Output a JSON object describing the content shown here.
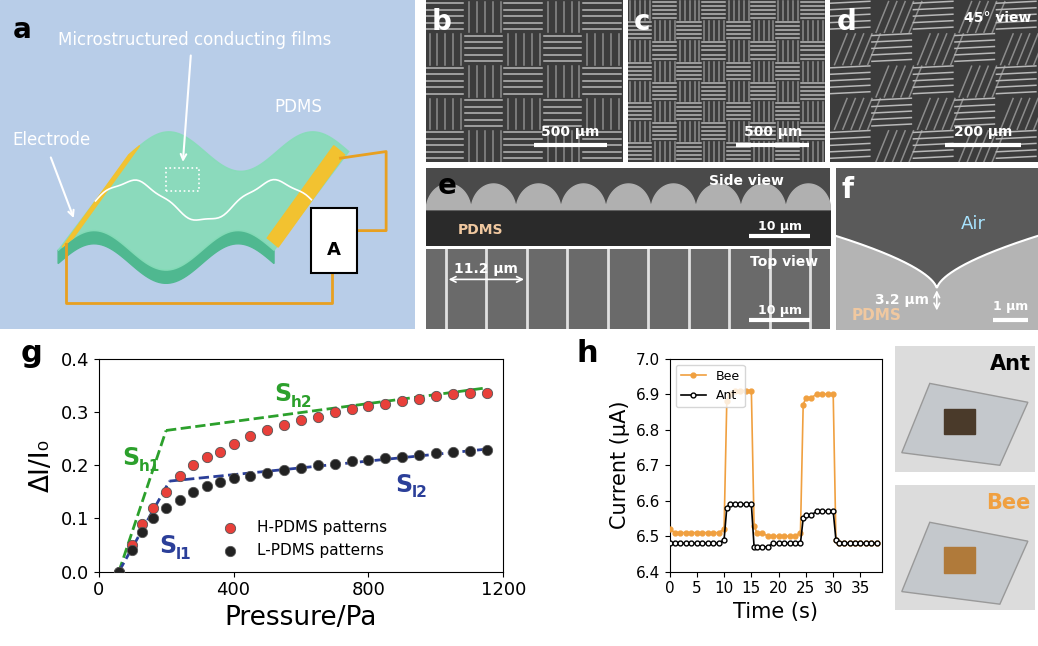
{
  "panels": {
    "a": {
      "letter": "a",
      "film": "Microstructured conducting films",
      "material": "PDMS",
      "electrode": "Electrode",
      "meter": "A"
    },
    "b": {
      "letter": "b",
      "scale_bar": "500 µm"
    },
    "c": {
      "letter": "c",
      "scale_bar": "500 µm"
    },
    "d": {
      "letter": "d",
      "view": "45° view",
      "scale_bar": "200 µm"
    },
    "e": {
      "letter": "e",
      "side": {
        "view": "Side view",
        "material": "PDMS",
        "scale_bar": "10 µm"
      },
      "top": {
        "view": "Top view",
        "period": "11.2 µm",
        "scale_bar": "10 µm"
      }
    },
    "f": {
      "letter": "f",
      "medium": "Air",
      "height": "3.2 µm",
      "material": "PDMS",
      "scale_bar": "1 µm"
    }
  },
  "photos": [
    {
      "text": "Ant",
      "color": "#000000"
    },
    {
      "text": "Bee",
      "color": "#f0a040"
    }
  ],
  "chart_data": [
    {
      "panel": "g",
      "type": "scatter",
      "x_label": "Pressure/Pa",
      "y_label": "ΔI/I₀",
      "xlim": [
        0,
        1200
      ],
      "xticks": [
        0,
        400,
        800,
        1200
      ],
      "ylim": [
        0,
        0.4
      ],
      "yticks": [
        0.0,
        0.1,
        0.2,
        0.3,
        0.4
      ],
      "legend": "lower center",
      "series": [
        {
          "name": "H-PDMS patterns",
          "color": "#e8403a",
          "marker": "o",
          "x": [
            60,
            100,
            130,
            160,
            200,
            240,
            280,
            320,
            360,
            400,
            450,
            500,
            550,
            600,
            650,
            700,
            750,
            800,
            850,
            900,
            950,
            1000,
            1050,
            1100,
            1150
          ],
          "values": [
            0.0,
            0.05,
            0.09,
            0.12,
            0.15,
            0.18,
            0.2,
            0.215,
            0.225,
            0.24,
            0.255,
            0.265,
            0.275,
            0.285,
            0.29,
            0.3,
            0.305,
            0.31,
            0.315,
            0.32,
            0.325,
            0.33,
            0.333,
            0.335,
            0.336
          ]
        },
        {
          "name": "L-PDMS patterns",
          "color": "#222222",
          "marker": "o",
          "x": [
            60,
            100,
            130,
            160,
            200,
            240,
            280,
            320,
            360,
            400,
            450,
            500,
            550,
            600,
            650,
            700,
            750,
            800,
            850,
            900,
            950,
            1000,
            1050,
            1100,
            1150
          ],
          "values": [
            0.0,
            0.04,
            0.075,
            0.1,
            0.12,
            0.135,
            0.15,
            0.16,
            0.168,
            0.175,
            0.18,
            0.185,
            0.19,
            0.195,
            0.2,
            0.203,
            0.207,
            0.21,
            0.213,
            0.216,
            0.219,
            0.222,
            0.224,
            0.226,
            0.228
          ]
        }
      ],
      "fits": [
        {
          "label": {
            "text": "S",
            "sub": "h1"
          },
          "color": "#2ca02c",
          "line_style": "dashed",
          "x": [
            60,
            200
          ],
          "values": [
            0.0,
            0.265
          ]
        },
        {
          "label": {
            "text": "S",
            "sub": "h2"
          },
          "color": "#2ca02c",
          "line_style": "dashed",
          "x": [
            200,
            1150
          ],
          "values": [
            0.265,
            0.345
          ]
        },
        {
          "label": {
            "text": "S",
            "sub": "l1"
          },
          "color": "#2b3f99",
          "line_style": "dashed",
          "x": [
            60,
            210
          ],
          "values": [
            0.0,
            0.17
          ]
        },
        {
          "label": {
            "text": "S",
            "sub": "l2"
          },
          "color": "#2b3f99",
          "line_style": "dashed",
          "x": [
            210,
            1150
          ],
          "values": [
            0.17,
            0.23
          ]
        }
      ]
    },
    {
      "panel": "h",
      "type": "line",
      "x_label": "Time (s)",
      "y_label": "Current (μA)",
      "xlim": [
        0,
        39
      ],
      "xticks": [
        0,
        5,
        10,
        15,
        20,
        25,
        30,
        35
      ],
      "ylim": [
        6.4,
        7.0
      ],
      "yticks": [
        6.4,
        6.5,
        6.6,
        6.7,
        6.8,
        6.9,
        7.0
      ],
      "legend": "upper left",
      "x": [
        0,
        1,
        2,
        3,
        4,
        5,
        6,
        7,
        8,
        9,
        10,
        10.5,
        11,
        12,
        13,
        14,
        15,
        15.5,
        16,
        17,
        18,
        19,
        20,
        21,
        22,
        23,
        24,
        24.5,
        25,
        26,
        27,
        28,
        29,
        30,
        30.5,
        31,
        32,
        33,
        34,
        35,
        36,
        37,
        38
      ],
      "series": [
        {
          "name": "Bee",
          "color": "#f0a040",
          "marker": "o",
          "values": [
            6.52,
            6.51,
            6.51,
            6.51,
            6.51,
            6.51,
            6.51,
            6.51,
            6.51,
            6.51,
            6.52,
            6.88,
            6.9,
            6.91,
            6.91,
            6.91,
            6.91,
            6.53,
            6.51,
            6.51,
            6.5,
            6.5,
            6.5,
            6.5,
            6.5,
            6.5,
            6.51,
            6.87,
            6.89,
            6.89,
            6.9,
            6.9,
            6.9,
            6.9,
            6.49,
            6.48,
            6.48,
            6.48,
            6.48,
            6.48,
            6.48,
            6.48,
            6.48
          ]
        },
        {
          "name": "Ant",
          "color": "#000000",
          "marker": "o",
          "values": [
            6.48,
            6.48,
            6.48,
            6.48,
            6.48,
            6.48,
            6.48,
            6.48,
            6.48,
            6.48,
            6.49,
            6.58,
            6.59,
            6.59,
            6.59,
            6.59,
            6.59,
            6.47,
            6.47,
            6.47,
            6.47,
            6.48,
            6.48,
            6.48,
            6.48,
            6.48,
            6.48,
            6.55,
            6.56,
            6.56,
            6.57,
            6.57,
            6.57,
            6.57,
            6.49,
            6.48,
            6.48,
            6.48,
            6.48,
            6.48,
            6.48,
            6.48,
            6.48
          ]
        }
      ]
    }
  ]
}
